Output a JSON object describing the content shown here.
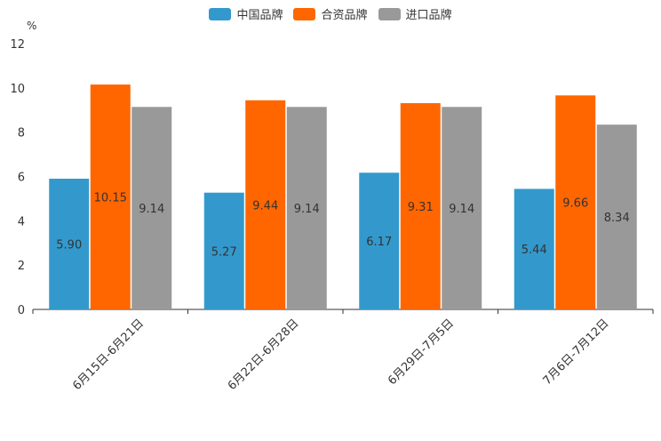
{
  "chart_data": {
    "type": "bar",
    "unit_label": "%",
    "categories": [
      "6月15日-6月21日",
      "6月22日-6月28日",
      "6月29日-7月5日",
      "7月6日-7月12日"
    ],
    "series": [
      {
        "name": "中国品牌",
        "color": "#3399cc",
        "values": [
          5.9,
          5.27,
          6.17,
          5.44
        ]
      },
      {
        "name": "合资品牌",
        "color": "#ff6600",
        "values": [
          10.15,
          9.44,
          9.31,
          9.66
        ]
      },
      {
        "name": "进口品牌",
        "color": "#999999",
        "values": [
          9.14,
          9.14,
          9.14,
          8.34
        ]
      }
    ],
    "ylim": [
      0,
      12
    ],
    "yticks": [
      0,
      2,
      4,
      6,
      8,
      10,
      12
    ],
    "legend_position": "top-center",
    "grid": false
  }
}
